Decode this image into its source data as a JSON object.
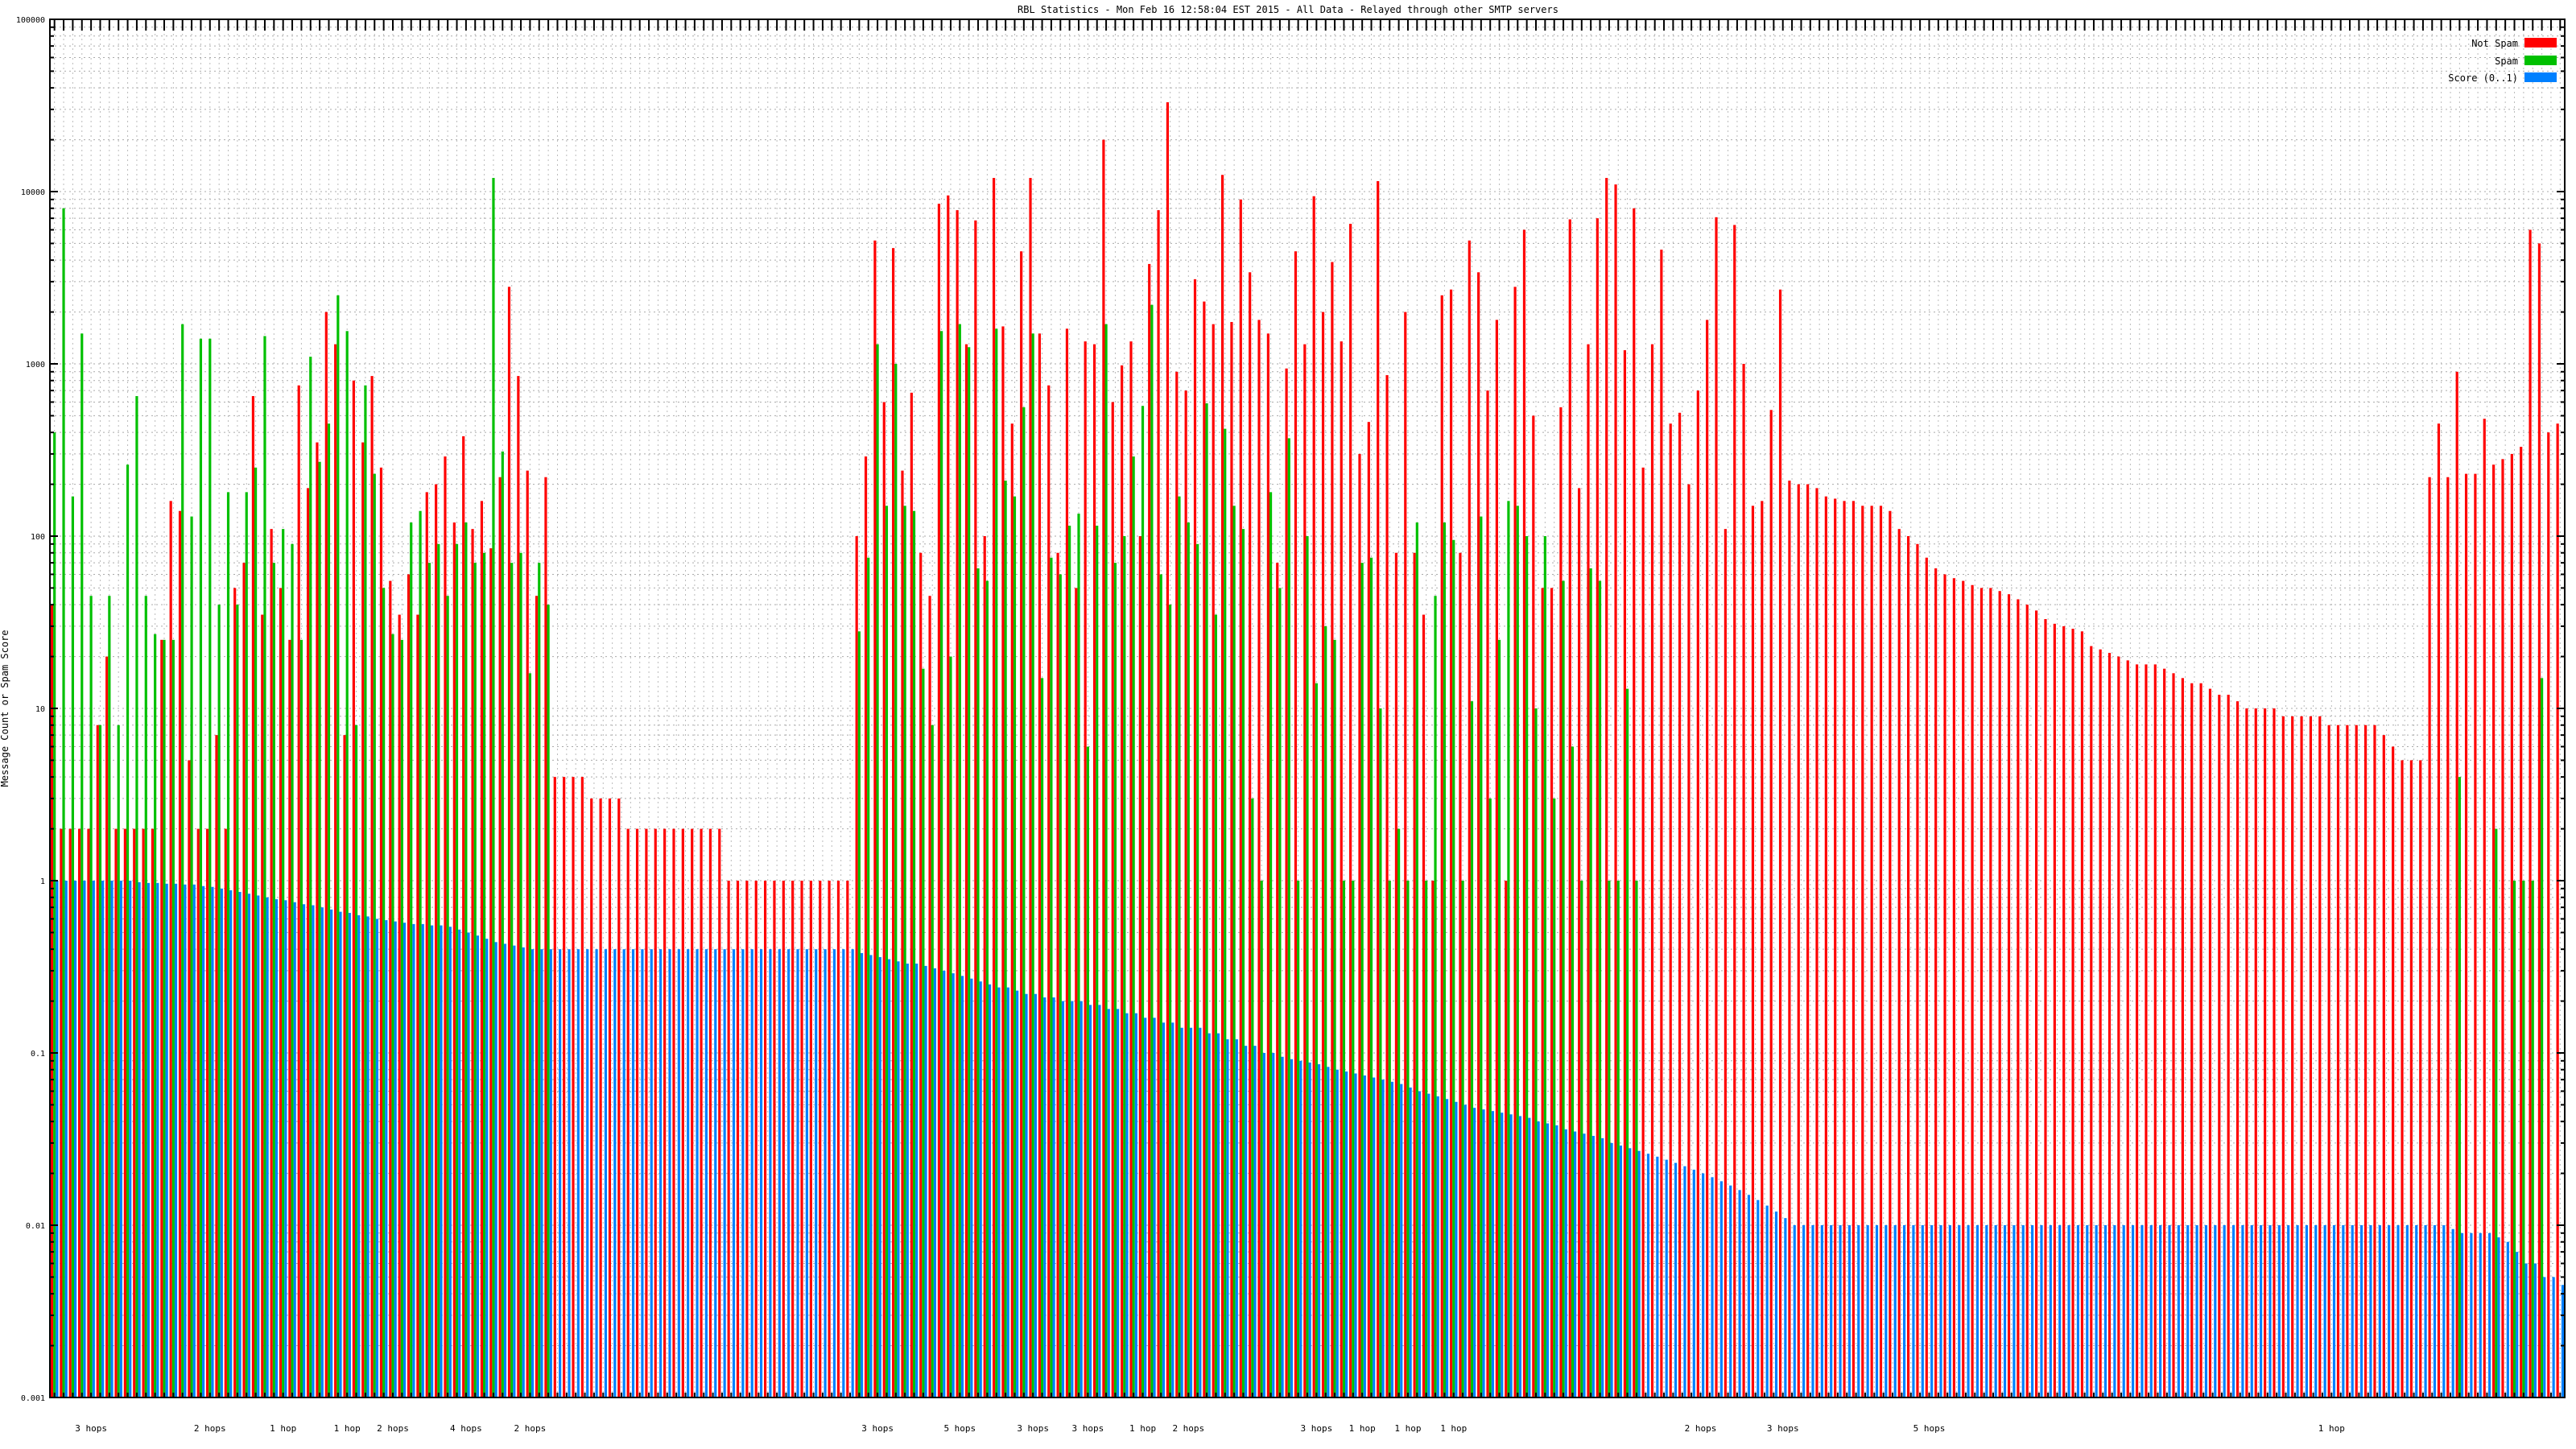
{
  "chart_data": {
    "type": "bar",
    "title": "RBL Statistics - Mon Feb 16 12:58:04 EST 2015 - All Data - Relayed through other SMTP servers",
    "ylabel": "Message Count or Spam Score",
    "xlabel": "",
    "yscale": "log",
    "ylim": [
      0.001,
      100000
    ],
    "yticks": [
      "100000",
      "10000",
      "1000",
      "100",
      "10",
      "1",
      "0.1",
      "0.01",
      "0.001"
    ],
    "grid": true,
    "legend_position": "top-right",
    "colors": {
      "not_spam": "#ff0000",
      "spam": "#00c000",
      "score": "#0080ff"
    },
    "series": [
      {
        "name": "Not Spam",
        "values": [
          40,
          2,
          2,
          2,
          2,
          8,
          20,
          2,
          2,
          2,
          2,
          2,
          25,
          160,
          140,
          5,
          2,
          2,
          7,
          2,
          50,
          70,
          650,
          35,
          110,
          50,
          25,
          750,
          190,
          350,
          2000,
          1300,
          7,
          800,
          350,
          850,
          250,
          55,
          35,
          60,
          35,
          180,
          200,
          290,
          120,
          380,
          110,
          160,
          85,
          220,
          2800,
          850,
          240,
          45,
          220,
          4,
          4,
          4,
          4,
          3,
          3,
          3,
          3,
          2,
          2,
          2,
          2,
          2,
          2,
          2,
          2,
          2,
          2,
          2,
          1,
          1,
          1,
          1,
          1,
          1,
          1,
          1,
          1,
          1,
          1,
          1,
          1,
          1,
          100,
          290,
          5200,
          600,
          4700,
          240,
          680,
          80,
          45,
          8500,
          9500,
          7800,
          1300,
          6800,
          100,
          12000,
          1650,
          450,
          4500,
          12000,
          1500,
          750,
          80,
          1600,
          50,
          1350,
          1300,
          20000,
          600,
          980,
          1350,
          100,
          3800,
          7800,
          33000,
          900,
          700,
          3100,
          2300,
          1700,
          12500,
          1750,
          9000,
          3400,
          1800,
          1500,
          70,
          940,
          4500,
          1300,
          9400,
          2000,
          3900,
          1350,
          6500,
          300,
          460,
          11500,
          860,
          80,
          2000,
          80,
          35,
          1,
          2500,
          2700,
          80,
          5200,
          3400,
          700,
          1800,
          1,
          2800,
          6000,
          500,
          50,
          50,
          560,
          6900,
          190,
          1300,
          7000,
          12000,
          11000,
          1200,
          8000,
          250,
          1300,
          4600,
          450,
          520,
          200,
          700,
          1800,
          7100,
          110,
          6400,
          1000,
          150,
          160,
          540,
          2700,
          210,
          200,
          200,
          190,
          170,
          165,
          160,
          160,
          150,
          150,
          150,
          140,
          110,
          100,
          90,
          75,
          65,
          60,
          57,
          55,
          52,
          50,
          50,
          48,
          46,
          43,
          40,
          37,
          33,
          31,
          30,
          29,
          28,
          23,
          22,
          21,
          20,
          19,
          18,
          18,
          18,
          17,
          16,
          15,
          14,
          14,
          13,
          12,
          12,
          11,
          10,
          10,
          10,
          10,
          9,
          9,
          9,
          9,
          9,
          8,
          8,
          8,
          8,
          8,
          8,
          7,
          6,
          5,
          5,
          5,
          220,
          450,
          220,
          900,
          230,
          230,
          480,
          260,
          280,
          300,
          330,
          6000,
          5000,
          400,
          450
        ]
      },
      {
        "name": "Spam",
        "values": [
          400,
          8000,
          170,
          1500,
          45,
          8,
          45,
          8,
          260,
          650,
          45,
          27,
          25,
          25,
          1700,
          130,
          1400,
          1400,
          40,
          180,
          40,
          180,
          250,
          1450,
          70,
          110,
          90,
          25,
          1100,
          270,
          450,
          2500,
          1550,
          8,
          750,
          230,
          50,
          27,
          25,
          120,
          140,
          70,
          90,
          45,
          90,
          120,
          70,
          80,
          12000,
          310,
          70,
          80,
          16,
          70,
          40,
          0,
          0,
          0,
          0,
          0,
          0,
          0,
          0,
          0,
          0,
          0,
          0,
          0,
          0,
          0,
          0,
          0,
          0,
          0,
          0,
          0,
          0,
          0,
          0,
          0,
          0,
          0,
          0,
          0,
          0,
          0,
          0,
          0,
          28,
          75,
          1300,
          150,
          1000,
          150,
          140,
          17,
          8,
          1550,
          20,
          1700,
          1250,
          65,
          55,
          1600,
          210,
          170,
          560,
          1500,
          15,
          75,
          60,
          115,
          135,
          6,
          115,
          1700,
          70,
          100,
          290,
          570,
          2200,
          60,
          40,
          170,
          120,
          90,
          590,
          35,
          420,
          150,
          110,
          3,
          1,
          180,
          50,
          370,
          1,
          100,
          14,
          30,
          25,
          1,
          1,
          70,
          75,
          10,
          1,
          2,
          1,
          120,
          1,
          45,
          120,
          95,
          1,
          11,
          130,
          3,
          25,
          160,
          150,
          100,
          10,
          100,
          3,
          55,
          6,
          1,
          65,
          55,
          1,
          1,
          13,
          1,
          0,
          0,
          0,
          0,
          0,
          0,
          0,
          0,
          0,
          0,
          0,
          0,
          0,
          0,
          0,
          0,
          0,
          0,
          0,
          0,
          0,
          0,
          0,
          0,
          0,
          0,
          0,
          0,
          0,
          0,
          0,
          0,
          0,
          0,
          0,
          0,
          0,
          0,
          0,
          0,
          0,
          0,
          0,
          0,
          0,
          0,
          0,
          0,
          0,
          0,
          0,
          0,
          0,
          0,
          0,
          0,
          0,
          0,
          0,
          0,
          0,
          0,
          0,
          0,
          0,
          0,
          0,
          0,
          0,
          0,
          0,
          0,
          0,
          0,
          0,
          0,
          0,
          0,
          0,
          0,
          0,
          0,
          0,
          0,
          0,
          0,
          0,
          0,
          0,
          4,
          0,
          0,
          0,
          2,
          0,
          1,
          1,
          1,
          15,
          0,
          0
        ]
      },
      {
        "name": "Score (0..1)",
        "values": [
          1,
          1,
          1,
          1,
          1,
          1,
          1,
          1,
          1,
          0.98,
          0.97,
          0.97,
          0.96,
          0.96,
          0.95,
          0.95,
          0.93,
          0.92,
          0.9,
          0.88,
          0.86,
          0.84,
          0.82,
          0.8,
          0.78,
          0.77,
          0.75,
          0.73,
          0.72,
          0.7,
          0.68,
          0.66,
          0.65,
          0.63,
          0.62,
          0.6,
          0.59,
          0.58,
          0.57,
          0.56,
          0.56,
          0.55,
          0.55,
          0.54,
          0.52,
          0.5,
          0.48,
          0.46,
          0.44,
          0.43,
          0.42,
          0.41,
          0.4,
          0.4,
          0.4,
          0.4,
          0.4,
          0.4,
          0.4,
          0.4,
          0.4,
          0.4,
          0.4,
          0.4,
          0.4,
          0.4,
          0.4,
          0.4,
          0.4,
          0.4,
          0.4,
          0.4,
          0.4,
          0.4,
          0.4,
          0.4,
          0.4,
          0.4,
          0.4,
          0.4,
          0.4,
          0.4,
          0.4,
          0.4,
          0.4,
          0.4,
          0.4,
          0.4,
          0.38,
          0.37,
          0.36,
          0.35,
          0.34,
          0.33,
          0.33,
          0.32,
          0.31,
          0.3,
          0.29,
          0.28,
          0.27,
          0.26,
          0.25,
          0.24,
          0.24,
          0.23,
          0.22,
          0.22,
          0.21,
          0.21,
          0.2,
          0.2,
          0.2,
          0.19,
          0.19,
          0.18,
          0.18,
          0.17,
          0.17,
          0.16,
          0.16,
          0.15,
          0.15,
          0.14,
          0.14,
          0.14,
          0.13,
          0.13,
          0.12,
          0.12,
          0.11,
          0.11,
          0.1,
          0.1,
          0.095,
          0.092,
          0.09,
          0.088,
          0.086,
          0.083,
          0.08,
          0.078,
          0.076,
          0.074,
          0.072,
          0.07,
          0.068,
          0.066,
          0.063,
          0.06,
          0.058,
          0.056,
          0.054,
          0.052,
          0.05,
          0.048,
          0.047,
          0.046,
          0.045,
          0.044,
          0.043,
          0.042,
          0.04,
          0.039,
          0.038,
          0.036,
          0.035,
          0.034,
          0.033,
          0.032,
          0.03,
          0.029,
          0.028,
          0.027,
          0.026,
          0.025,
          0.024,
          0.023,
          0.022,
          0.021,
          0.02,
          0.019,
          0.018,
          0.017,
          0.016,
          0.015,
          0.014,
          0.013,
          0.012,
          0.011,
          0.01,
          0.01,
          0.01,
          0.01,
          0.01,
          0.01,
          0.01,
          0.01,
          0.01,
          0.01,
          0.01,
          0.01,
          0.01,
          0.01,
          0.01,
          0.01,
          0.01,
          0.01,
          0.01,
          0.01,
          0.01,
          0.01,
          0.01,
          0.01,
          0.01,
          0.01,
          0.01,
          0.01,
          0.01,
          0.01,
          0.01,
          0.01,
          0.01,
          0.01,
          0.01,
          0.01,
          0.01,
          0.01,
          0.01,
          0.01,
          0.01,
          0.01,
          0.01,
          0.01,
          0.01,
          0.01,
          0.01,
          0.01,
          0.01,
          0.01,
          0.01,
          0.01,
          0.01,
          0.01,
          0.01,
          0.01,
          0.01,
          0.01,
          0.01,
          0.01,
          0.01,
          0.01,
          0.01,
          0.01,
          0.01,
          0.01,
          0.01,
          0.01,
          0.01,
          0.01,
          0.01,
          0.01,
          0.0095,
          0.009,
          0.009,
          0.009,
          0.009,
          0.0085,
          0.008,
          0.007,
          0.006,
          0.006,
          0.005,
          0.005,
          0.0045
        ]
      }
    ],
    "hop_labels": [
      {
        "label": "3 hops",
        "group": 4
      },
      {
        "label": "2 hops",
        "group": 17
      },
      {
        "label": "1 hop",
        "group": 25
      },
      {
        "label": "1 hop",
        "group": 32
      },
      {
        "label": "2 hops",
        "group": 37
      },
      {
        "label": "4 hops",
        "group": 45
      },
      {
        "label": "2 hops",
        "group": 52
      },
      {
        "label": "3 hops",
        "group": 90
      },
      {
        "label": "5 hops",
        "group": 99
      },
      {
        "label": "3 hops",
        "group": 107
      },
      {
        "label": "3 hops",
        "group": 113
      },
      {
        "label": "1 hop",
        "group": 119
      },
      {
        "label": "2 hops",
        "group": 124
      },
      {
        "label": "3 hops",
        "group": 138
      },
      {
        "label": "1 hop",
        "group": 143
      },
      {
        "label": "1 hop",
        "group": 148
      },
      {
        "label": "1 hop",
        "group": 153
      },
      {
        "label": "2 hops",
        "group": 180
      },
      {
        "label": "3 hops",
        "group": 189
      },
      {
        "label": "5 hops",
        "group": 205
      },
      {
        "label": "1 hop",
        "group": 249
      }
    ]
  }
}
